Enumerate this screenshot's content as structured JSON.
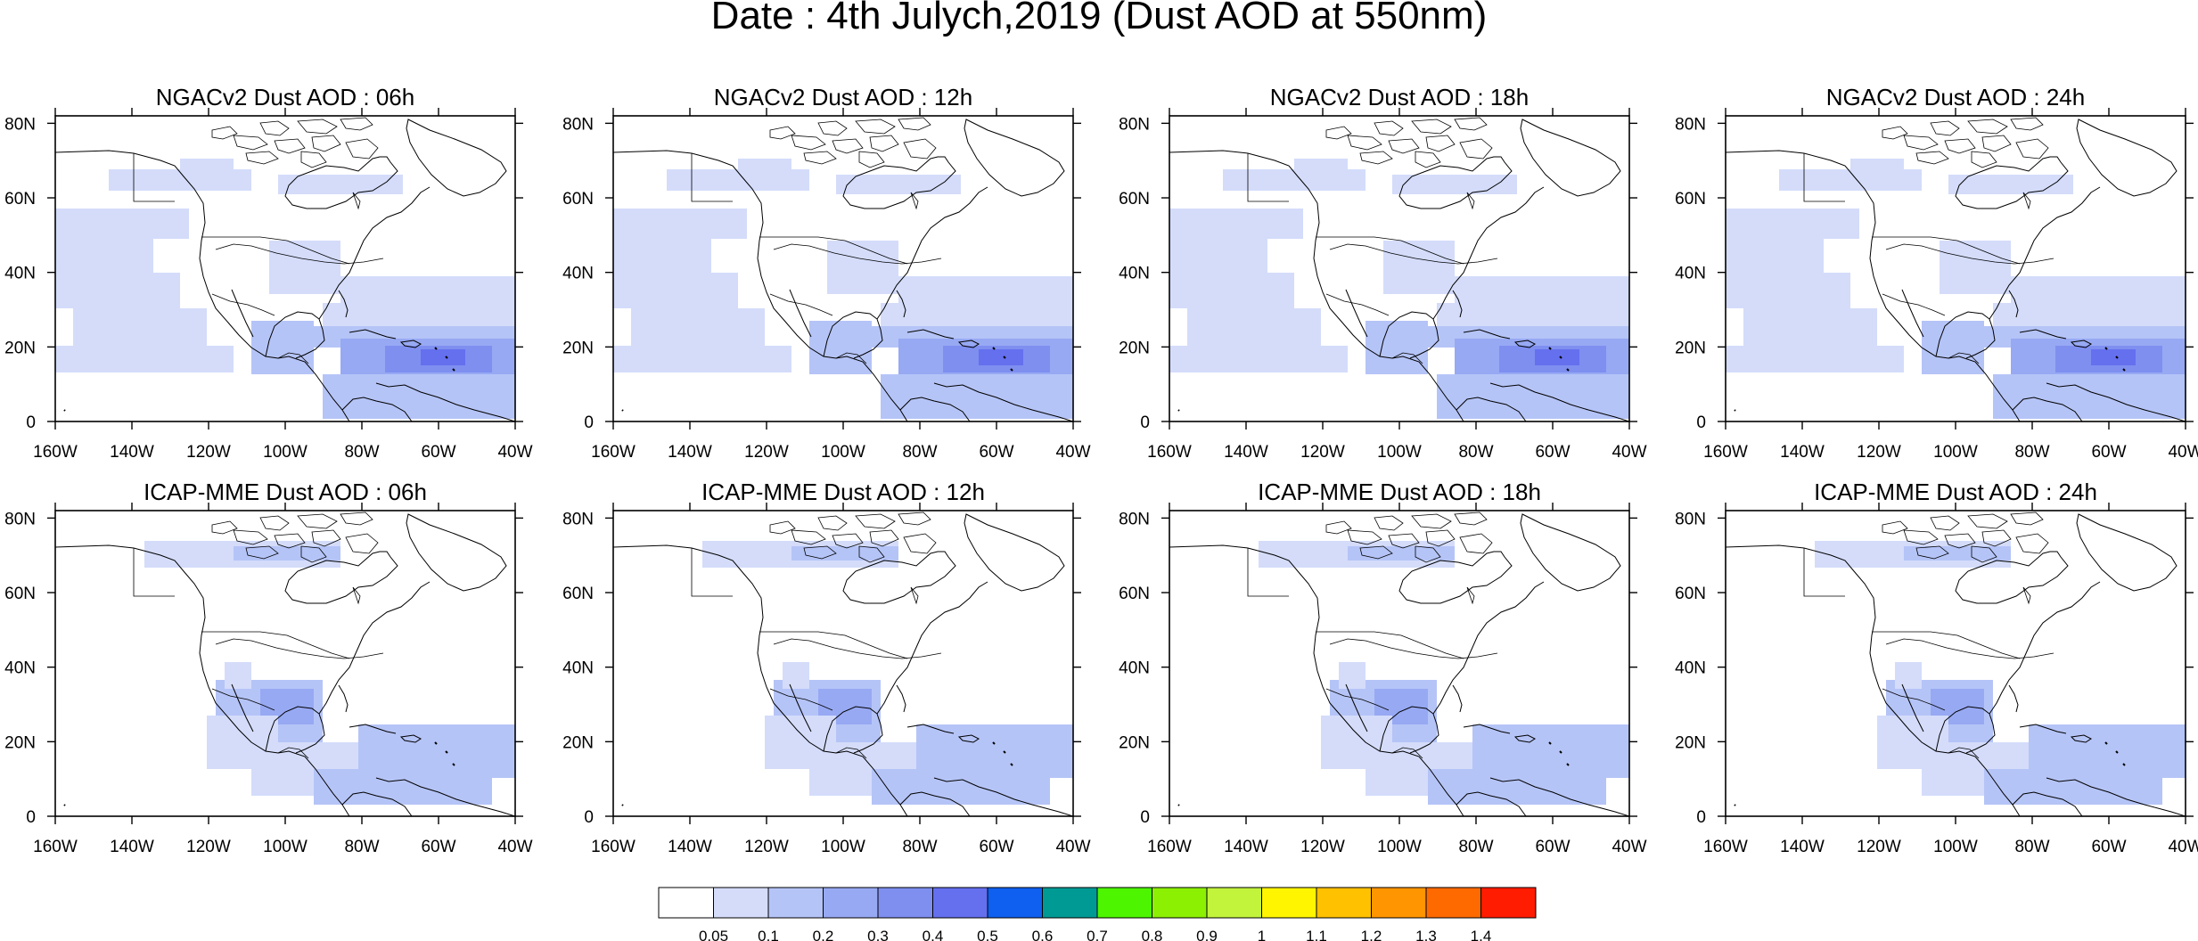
{
  "figure": {
    "title": "Date : 4th Julych,2019 (Dust AOD at 550nm)"
  },
  "axes": {
    "lat_ticks": [
      "0",
      "20N",
      "40N",
      "60N",
      "80N"
    ],
    "lat_values": [
      0,
      20,
      40,
      60,
      80
    ],
    "lon_ticks": [
      "160W",
      "140W",
      "120W",
      "100W",
      "80W",
      "60W",
      "40W"
    ],
    "lon_values": [
      -160,
      -140,
      -120,
      -100,
      -80,
      -60,
      -40
    ],
    "lon_range": [
      -160,
      -40
    ],
    "lat_range": [
      0,
      82
    ]
  },
  "panels": [
    {
      "title": "NGACv2 Dust AOD : 06h",
      "model": "NGACv2",
      "hour": 6
    },
    {
      "title": "NGACv2 Dust AOD : 12h",
      "model": "NGACv2",
      "hour": 12
    },
    {
      "title": "NGACv2 Dust AOD : 18h",
      "model": "NGACv2",
      "hour": 18
    },
    {
      "title": "NGACv2 Dust AOD : 24h",
      "model": "NGACv2",
      "hour": 24
    },
    {
      "title": "ICAP-MME Dust AOD : 06h",
      "model": "ICAP-MME",
      "hour": 6
    },
    {
      "title": "ICAP-MME Dust AOD : 12h",
      "model": "ICAP-MME",
      "hour": 12
    },
    {
      "title": "ICAP-MME Dust AOD : 18h",
      "model": "ICAP-MME",
      "hour": 18
    },
    {
      "title": "ICAP-MME Dust AOD : 24h",
      "model": "ICAP-MME",
      "hour": 24
    }
  ],
  "colorbar": {
    "labels": [
      "0.05",
      "0.1",
      "0.2",
      "0.3",
      "0.4",
      "0.5",
      "0.6",
      "0.7",
      "0.8",
      "0.9",
      "1",
      "1.1",
      "1.2",
      "1.3",
      "1.4"
    ],
    "colors": [
      "#ffffff",
      "#d4dcfa",
      "#b5c4f7",
      "#97a9f3",
      "#7e8ff0",
      "#6470ee",
      "#0f5ff0",
      "#009a94",
      "#4df501",
      "#8cf002",
      "#c2f43c",
      "#fff500",
      "#ffc100",
      "#ff9500",
      "#ff6a00",
      "#ff1c00"
    ]
  },
  "colors": {
    "aod_lt_0_1": "#d4dcfa",
    "aod_0_1_0_2": "#b5c4f7",
    "aod_0_2_0_3": "#97a9f3",
    "aod_0_3_0_4": "#7e8ff0",
    "aod_0_4_0_5": "#6470ee"
  }
}
